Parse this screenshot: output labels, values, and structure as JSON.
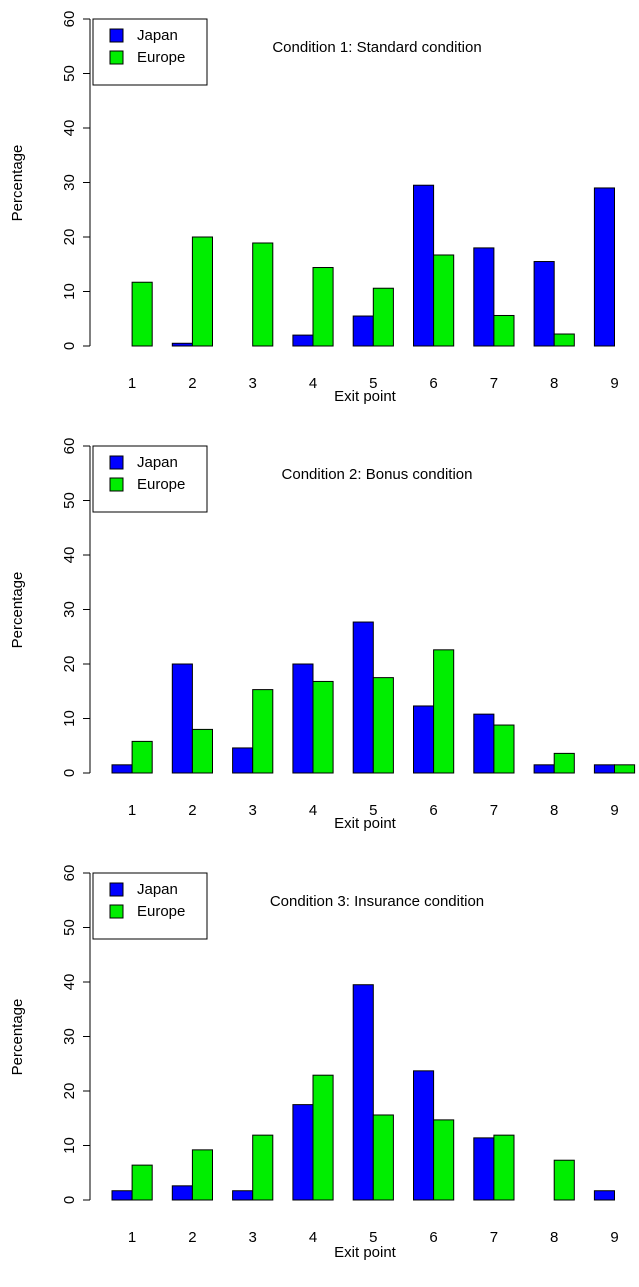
{
  "colors": {
    "japan": "#0000ff",
    "europe": "#00ee00",
    "axis": "#000000"
  },
  "chart_data": [
    {
      "type": "bar",
      "title": "Condition 1: Standard condition",
      "xlabel": "Exit point",
      "ylabel": "Percentage",
      "categories": [
        "1",
        "2",
        "3",
        "4",
        "5",
        "6",
        "7",
        "8",
        "9"
      ],
      "ylim": [
        0,
        60
      ],
      "yticks": [
        0,
        10,
        20,
        30,
        40,
        50,
        60
      ],
      "legend_position": "top-left",
      "series": [
        {
          "name": "Japan",
          "values": [
            0,
            0.5,
            0,
            2,
            5.5,
            29.5,
            18,
            15.5,
            29
          ]
        },
        {
          "name": "Europe",
          "values": [
            11.7,
            20,
            18.9,
            14.4,
            10.6,
            16.7,
            5.6,
            2.2,
            0
          ]
        }
      ]
    },
    {
      "type": "bar",
      "title": "Condition 2: Bonus condition",
      "xlabel": "Exit point",
      "ylabel": "Percentage",
      "categories": [
        "1",
        "2",
        "3",
        "4",
        "5",
        "6",
        "7",
        "8",
        "9"
      ],
      "ylim": [
        0,
        60
      ],
      "yticks": [
        0,
        10,
        20,
        30,
        40,
        50,
        60
      ],
      "legend_position": "top-left",
      "series": [
        {
          "name": "Japan",
          "values": [
            1.5,
            20,
            4.6,
            20,
            27.7,
            12.3,
            10.8,
            1.5,
            1.5
          ]
        },
        {
          "name": "Europe",
          "values": [
            5.8,
            8,
            15.3,
            16.8,
            17.5,
            22.6,
            8.8,
            3.6,
            1.5
          ]
        }
      ]
    },
    {
      "type": "bar",
      "title": "Condition 3: Insurance condition",
      "xlabel": "Exit point",
      "ylabel": "Percentage",
      "categories": [
        "1",
        "2",
        "3",
        "4",
        "5",
        "6",
        "7",
        "8",
        "9"
      ],
      "ylim": [
        0,
        60
      ],
      "yticks": [
        0,
        10,
        20,
        30,
        40,
        50,
        60
      ],
      "legend_position": "top-left",
      "series": [
        {
          "name": "Japan",
          "values": [
            1.7,
            2.6,
            1.7,
            17.5,
            39.5,
            23.7,
            11.4,
            0,
            1.7
          ]
        },
        {
          "name": "Europe",
          "values": [
            6.4,
            9.2,
            11.9,
            22.9,
            15.6,
            14.7,
            11.9,
            7.3,
            0
          ]
        }
      ]
    }
  ]
}
